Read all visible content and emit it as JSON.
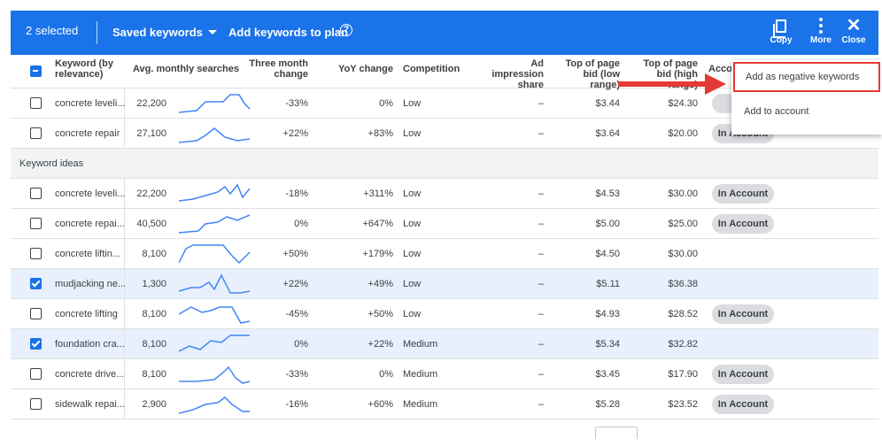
{
  "toolbar": {
    "selected": "2 selected",
    "saved_keywords": "Saved keywords",
    "add_to_plan": "Add keywords to plan",
    "copy": "Copy",
    "more": "More",
    "close": "Close",
    "color": "#1a73e8"
  },
  "headers": {
    "keyword": "Keyword (by relevance)",
    "avg": "Avg. monthly searches",
    "three": "Three month change",
    "yoy": "YoY change",
    "competition": "Competition",
    "impression": "Ad impression share",
    "bid_low": "Top of page bid (low range)",
    "bid_high": "Top of page bid (high range)",
    "account": "Accou"
  },
  "section_label": "Keyword ideas",
  "rows": [
    {
      "keyword": "concrete leveli...",
      "avg": "22,200",
      "three": "-33%",
      "yoy": "0%",
      "competition": "Low",
      "impression": "–",
      "low": "$3.44",
      "high": "$24.30",
      "account": "In Ac",
      "checked": false
    },
    {
      "keyword": "concrete repair",
      "avg": "27,100",
      "three": "+22%",
      "yoy": "+83%",
      "competition": "Low",
      "impression": "–",
      "low": "$3.64",
      "high": "$20.00",
      "account": "In Account",
      "checked": false
    },
    {
      "keyword": "concrete leveli...",
      "avg": "22,200",
      "three": "-18%",
      "yoy": "+311%",
      "competition": "Low",
      "impression": "–",
      "low": "$4.53",
      "high": "$30.00",
      "account": "In Account",
      "checked": false
    },
    {
      "keyword": "concrete repai...",
      "avg": "40,500",
      "three": "0%",
      "yoy": "+647%",
      "competition": "Low",
      "impression": "–",
      "low": "$5.00",
      "high": "$25.00",
      "account": "In Account",
      "checked": false
    },
    {
      "keyword": "concrete liftin...",
      "avg": "8,100",
      "three": "+50%",
      "yoy": "+179%",
      "competition": "Low",
      "impression": "–",
      "low": "$4.50",
      "high": "$30.00",
      "account": "",
      "checked": false
    },
    {
      "keyword": "mudjacking ne...",
      "avg": "1,300",
      "three": "+22%",
      "yoy": "+49%",
      "competition": "Low",
      "impression": "–",
      "low": "$5.11",
      "high": "$36.38",
      "account": "",
      "checked": true
    },
    {
      "keyword": "concrete lifting",
      "avg": "8,100",
      "three": "-45%",
      "yoy": "+50%",
      "competition": "Low",
      "impression": "–",
      "low": "$4.93",
      "high": "$28.52",
      "account": "In Account",
      "checked": false
    },
    {
      "keyword": "foundation cra...",
      "avg": "8,100",
      "three": "0%",
      "yoy": "+22%",
      "competition": "Medium",
      "impression": "–",
      "low": "$5.34",
      "high": "$32.82",
      "account": "",
      "checked": true
    },
    {
      "keyword": "concrete drive...",
      "avg": "8,100",
      "three": "-33%",
      "yoy": "0%",
      "competition": "Medium",
      "impression": "–",
      "low": "$3.45",
      "high": "$17.90",
      "account": "In Account",
      "checked": false
    },
    {
      "keyword": "sidewalk repai...",
      "avg": "2,900",
      "three": "-16%",
      "yoy": "+60%",
      "competition": "Medium",
      "impression": "–",
      "low": "$5.28",
      "high": "$23.52",
      "account": "In Account",
      "checked": false
    }
  ],
  "menu": {
    "add_negative": "Add as negative keywords",
    "add_account": "Add to account"
  }
}
